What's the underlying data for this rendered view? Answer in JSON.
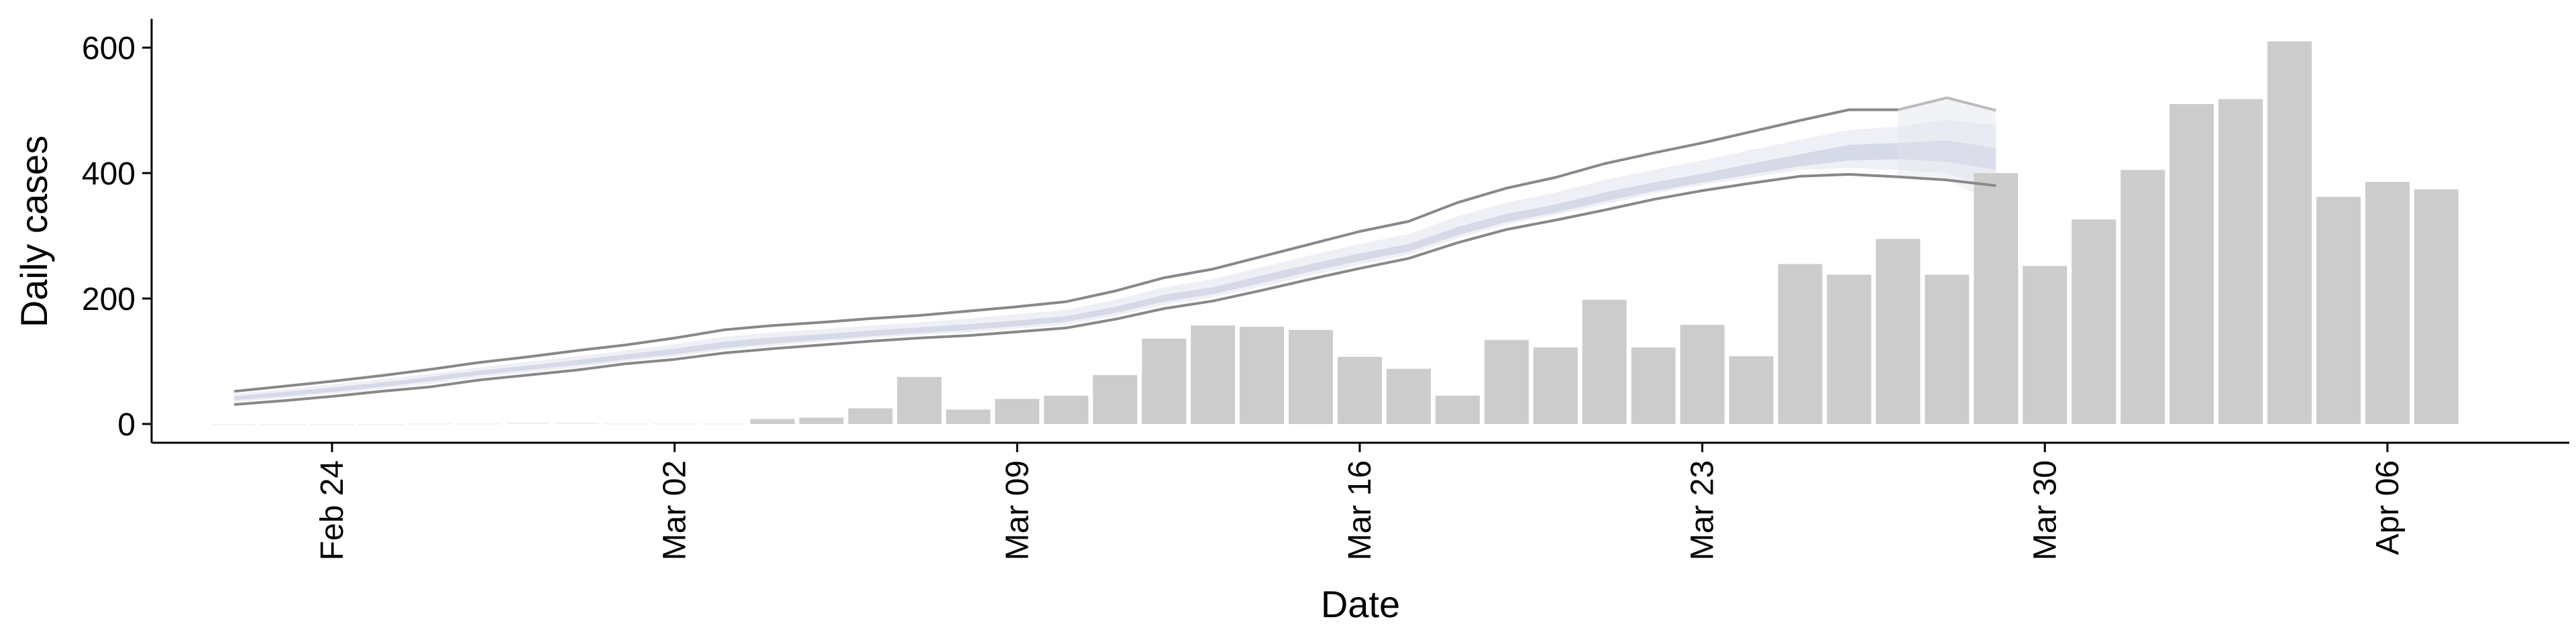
{
  "chart_data": {
    "type": "bar",
    "xlabel": "Date",
    "ylabel": "Daily cases",
    "ylim": [
      -30,
      645
    ],
    "yticks": [
      0,
      200,
      400,
      600
    ],
    "x_dates": [
      "2020-02-22",
      "2020-02-23",
      "2020-02-24",
      "2020-02-25",
      "2020-02-26",
      "2020-02-27",
      "2020-02-28",
      "2020-02-29",
      "2020-03-01",
      "2020-03-02",
      "2020-03-03",
      "2020-03-04",
      "2020-03-05",
      "2020-03-06",
      "2020-03-07",
      "2020-03-08",
      "2020-03-09",
      "2020-03-10",
      "2020-03-11",
      "2020-03-12",
      "2020-03-13",
      "2020-03-14",
      "2020-03-15",
      "2020-03-16",
      "2020-03-17",
      "2020-03-18",
      "2020-03-19",
      "2020-03-20",
      "2020-03-21",
      "2020-03-22",
      "2020-03-23",
      "2020-03-24",
      "2020-03-25",
      "2020-03-26",
      "2020-03-27",
      "2020-03-28",
      "2020-03-29",
      "2020-03-30",
      "2020-03-31",
      "2020-04-01",
      "2020-04-02",
      "2020-04-03",
      "2020-04-04",
      "2020-04-05",
      "2020-04-06",
      "2020-04-07"
    ],
    "xticks": [
      {
        "date": "2020-02-24",
        "label": "Feb 24"
      },
      {
        "date": "2020-03-02",
        "label": "Mar 02"
      },
      {
        "date": "2020-03-09",
        "label": "Mar 09"
      },
      {
        "date": "2020-03-16",
        "label": "Mar 16"
      },
      {
        "date": "2020-03-23",
        "label": "Mar 23"
      },
      {
        "date": "2020-03-30",
        "label": "Mar 30"
      },
      {
        "date": "2020-04-06",
        "label": "Apr 06"
      }
    ],
    "bars": {
      "color": "#cccccc",
      "values": [
        0,
        0,
        0,
        0,
        1,
        1,
        2,
        2,
        1,
        1,
        1,
        8,
        10,
        25,
        75,
        23,
        40,
        45,
        78,
        136,
        157,
        155,
        150,
        107,
        88,
        45,
        134,
        122,
        198,
        122,
        158,
        108,
        255,
        238,
        295,
        238,
        400,
        252,
        326,
        405,
        510,
        518,
        610,
        362,
        386,
        374
      ]
    },
    "line_series": [
      {
        "role": "upper",
        "color": "#888888",
        "values": [
          52,
          60,
          68,
          77,
          87,
          98,
          107,
          117,
          126,
          137,
          150,
          157,
          162,
          168,
          173,
          180,
          187,
          195,
          212,
          233,
          247,
          267,
          287,
          307,
          323,
          353,
          376,
          393,
          415,
          432,
          448,
          466,
          484,
          501,
          501,
          null,
          null
        ]
      },
      {
        "role": "lower",
        "color": "#888888",
        "values": [
          31,
          37,
          44,
          52,
          59,
          70,
          78,
          86,
          96,
          103,
          113,
          120,
          126,
          132,
          137,
          141,
          147,
          153,
          167,
          184,
          196,
          213,
          231,
          248,
          264,
          289,
          310,
          325,
          341,
          358,
          372,
          384,
          395,
          398,
          394,
          389,
          380
        ]
      }
    ],
    "bands": {
      "color": "#c5c9dd",
      "ribbon_dates": [
        "2020-02-22",
        "2020-02-23",
        "2020-02-24",
        "2020-02-25",
        "2020-02-26",
        "2020-02-27",
        "2020-02-28",
        "2020-02-29",
        "2020-03-01",
        "2020-03-02",
        "2020-03-03",
        "2020-03-04",
        "2020-03-05",
        "2020-03-06",
        "2020-03-07",
        "2020-03-08",
        "2020-03-09",
        "2020-03-10",
        "2020-03-11",
        "2020-03-12",
        "2020-03-13",
        "2020-03-14",
        "2020-03-15",
        "2020-03-16",
        "2020-03-17",
        "2020-03-18",
        "2020-03-19",
        "2020-03-20",
        "2020-03-21",
        "2020-03-22",
        "2020-03-23",
        "2020-03-24",
        "2020-03-25",
        "2020-03-26",
        "2020-03-27",
        "2020-03-28",
        "2020-03-29"
      ],
      "outer_upper": [
        48,
        55,
        63,
        71,
        80,
        90,
        99,
        108,
        117,
        127,
        139,
        146,
        151,
        157,
        162,
        168,
        175,
        182,
        198,
        218,
        231,
        250,
        269,
        287,
        303,
        331,
        353,
        369,
        389,
        405,
        420,
        437,
        453,
        469,
        474,
        485,
        476
      ],
      "outer_lower": [
        35,
        41,
        48,
        56,
        64,
        74,
        82,
        90,
        100,
        107,
        118,
        125,
        131,
        137,
        142,
        146,
        152,
        158,
        172,
        190,
        202,
        219,
        237,
        254,
        270,
        296,
        318,
        333,
        350,
        367,
        381,
        393,
        405,
        408,
        405,
        400,
        370
      ],
      "inner_upper": [
        44,
        51,
        58,
        66,
        75,
        85,
        93,
        102,
        111,
        120,
        131,
        138,
        143,
        149,
        154,
        159,
        165,
        172,
        187,
        206,
        218,
        237,
        255,
        272,
        287,
        314,
        335,
        350,
        369,
        385,
        399,
        415,
        430,
        445,
        448,
        452,
        440
      ],
      "inner_lower": [
        38,
        44,
        51,
        59,
        68,
        78,
        86,
        94,
        103,
        111,
        121,
        128,
        134,
        140,
        145,
        150,
        156,
        163,
        177,
        195,
        207,
        225,
        243,
        260,
        275,
        301,
        322,
        337,
        355,
        371,
        385,
        398,
        411,
        420,
        422,
        418,
        405
      ],
      "outer_tail_upper": [
        501,
        520,
        500
      ],
      "outer_tail_lower": [
        394,
        389,
        350
      ]
    }
  }
}
